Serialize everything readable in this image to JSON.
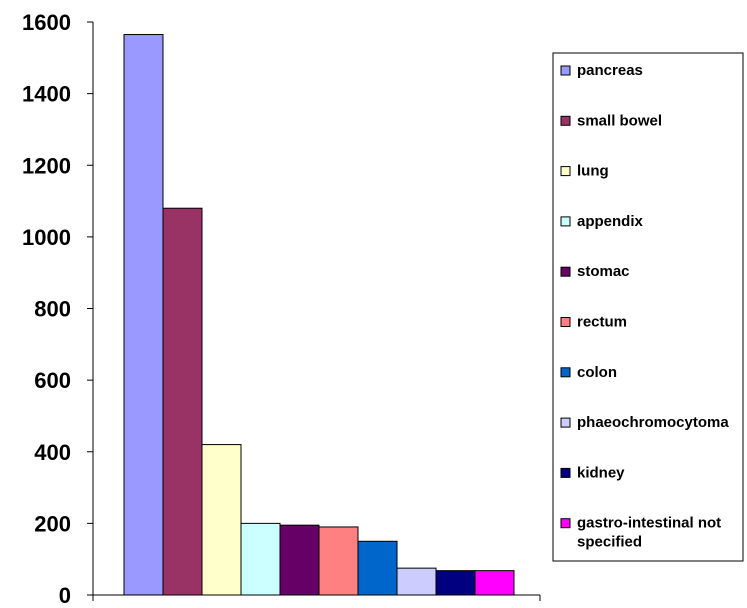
{
  "chart_data": {
    "type": "bar",
    "ylim": [
      0,
      1600
    ],
    "yticks": [
      0,
      200,
      400,
      600,
      800,
      1000,
      1200,
      1400,
      1600
    ],
    "grid": false,
    "legend_position": "right",
    "series": [
      {
        "name": "pancreas",
        "value": 1565,
        "color": "#9999ff"
      },
      {
        "name": "small bowel",
        "value": 1080,
        "color": "#993366"
      },
      {
        "name": "lung",
        "value": 420,
        "color": "#ffffcc"
      },
      {
        "name": "appendix",
        "value": 200,
        "color": "#ccffff"
      },
      {
        "name": "stomac",
        "value": 195,
        "color": "#660066"
      },
      {
        "name": "rectum",
        "value": 190,
        "color": "#ff8080"
      },
      {
        "name": "colon",
        "value": 150,
        "color": "#0066cc"
      },
      {
        "name": "phaeochromocytoma",
        "value": 75,
        "color": "#ccccff"
      },
      {
        "name": "kidney",
        "value": 68,
        "color": "#000080"
      },
      {
        "name": "gastro-intestinal not specified",
        "value": 68,
        "color": "#ff00ff"
      }
    ]
  }
}
